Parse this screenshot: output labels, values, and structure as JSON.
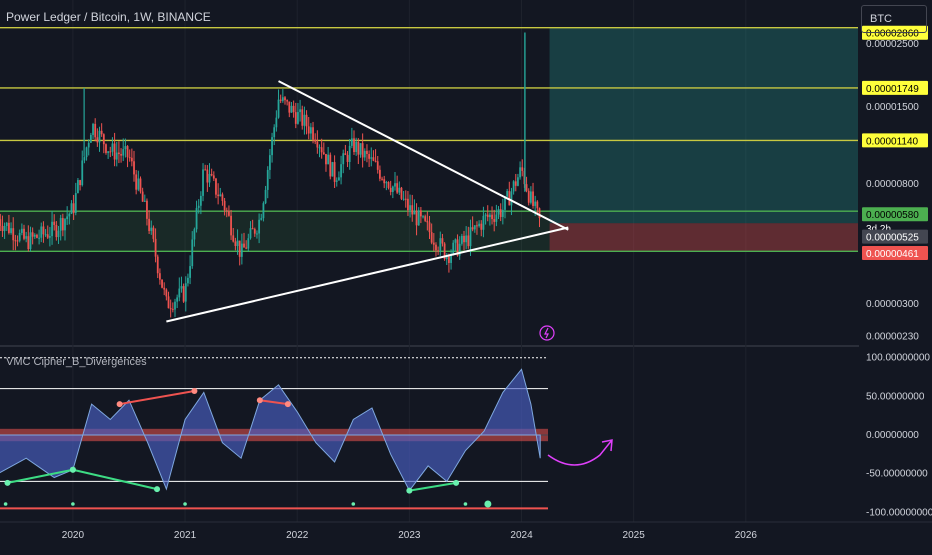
{
  "header": {
    "symbol": "Power Ledger / Bitcoin, 1W, BINANCE"
  },
  "currency_button": "BTC",
  "indicator": {
    "title": "VMC Cipher_B_Divergences"
  },
  "countdown": "3d 2h",
  "colors": {
    "background": "#131722",
    "bull": "#26a69a",
    "bear": "#ef5350",
    "yellow_level": "#c8c841",
    "green_level": "#4caf50",
    "wave": "#4a5fc4",
    "magenta": "#e040fb"
  },
  "chart_data": [
    {
      "type": "candlestick",
      "title": "Power Ledger / Bitcoin, 1W, BINANCE",
      "y_scale": "log",
      "ylim": [
        2.2e-06,
        2.8e-06
      ],
      "x_tick_labels": [
        "2020",
        "2021",
        "2022",
        "2023",
        "2024",
        "2025",
        "2026"
      ],
      "y_tick_labels": [
        "0.00002500",
        "0.00001500",
        "0.00000800",
        "0.00000300",
        "0.00000230"
      ],
      "horizontal_levels": [
        {
          "value_label": "0.00002860",
          "color": "yellow"
        },
        {
          "value_label": "0.00001749",
          "color": "yellow"
        },
        {
          "value_label": "0.00001140",
          "color": "yellow"
        },
        {
          "value_label": "0.00000580",
          "color": "green"
        },
        {
          "value_label": "0.00000461",
          "color": "green"
        }
      ],
      "price_labels": [
        {
          "text": "0.00001749",
          "kind": "level"
        },
        {
          "text": "0.00001140",
          "kind": "level"
        },
        {
          "text": "0.00000580",
          "kind": "current"
        },
        {
          "text": "0.00000525",
          "kind": "bid"
        },
        {
          "text": "0.00000461",
          "kind": "low"
        }
      ],
      "trendlines": [
        {
          "name": "descending resistance",
          "from": [
            "2021-11",
            1.85e-05
          ],
          "to": [
            "2024-06",
            5.5e-06
          ]
        },
        {
          "name": "ascending support",
          "from": [
            "2020-11",
            2.6e-06
          ],
          "to": [
            "2024-06",
            5.6e-06
          ]
        }
      ],
      "weekly_close_path": [
        [
          "2019-05",
          6e-06
        ],
        [
          "2019-08",
          5e-06
        ],
        [
          "2019-11",
          5.5e-06
        ],
        [
          "2020-01",
          6.5e-06
        ],
        [
          "2020-03",
          1.3e-05
        ],
        [
          "2020-05",
          1.05e-05
        ],
        [
          "2020-07",
          1e-05
        ],
        [
          "2020-09",
          6e-06
        ],
        [
          "2020-11",
          3e-06
        ],
        [
          "2021-01",
          3.3e-06
        ],
        [
          "2021-03",
          9e-06
        ],
        [
          "2021-05",
          7e-06
        ],
        [
          "2021-07",
          4.5e-06
        ],
        [
          "2021-09",
          6e-06
        ],
        [
          "2021-11",
          1.6e-05
        ],
        [
          "2022-01",
          1.4e-05
        ],
        [
          "2022-03",
          1.2e-05
        ],
        [
          "2022-05",
          8.5e-06
        ],
        [
          "2022-07",
          1.1e-05
        ],
        [
          "2022-09",
          9.5e-06
        ],
        [
          "2022-11",
          8e-06
        ],
        [
          "2023-01",
          6.5e-06
        ],
        [
          "2023-03",
          5.5e-06
        ],
        [
          "2023-05",
          4.5e-06
        ],
        [
          "2023-07",
          5e-06
        ],
        [
          "2023-09",
          6e-06
        ],
        [
          "2023-11",
          6.5e-06
        ],
        [
          "2024-01",
          9e-06
        ],
        [
          "2024-02",
          7e-06
        ],
        [
          "2024-03",
          5.8e-06
        ]
      ],
      "projection": {
        "from": "2024-04",
        "to": "2026-12",
        "target": 2.86e-05,
        "stop": 4.6e-06
      }
    },
    {
      "type": "line",
      "title": "VMC Cipher_B_Divergences",
      "ylim": [
        -110,
        110
      ],
      "y_tick_labels": [
        "100.00000000",
        "50.00000000",
        "0.00000000",
        "-50.00000000",
        "-100.00000000"
      ],
      "reference_levels": [
        100,
        60,
        0,
        -60,
        -95
      ],
      "divergence_lines": [
        {
          "type": "bearish",
          "from": [
            "2020-06",
            40
          ],
          "to": [
            "2021-02",
            57
          ]
        },
        {
          "type": "bearish",
          "from": [
            "2021-09",
            45
          ],
          "to": [
            "2021-12",
            40
          ]
        },
        {
          "type": "bullish",
          "from": [
            "2019-06",
            -62
          ],
          "to": [
            "2020-01",
            -45
          ]
        },
        {
          "type": "bullish",
          "from": [
            "2020-01",
            -45
          ],
          "to": [
            "2020-10",
            -70
          ]
        },
        {
          "type": "bullish",
          "from": [
            "2023-01",
            -72
          ],
          "to": [
            "2023-06",
            -62
          ]
        }
      ],
      "wave_path": [
        [
          "2019-05",
          -50
        ],
        [
          "2019-08",
          -30
        ],
        [
          "2019-11",
          -55
        ],
        [
          "2020-01",
          -45
        ],
        [
          "2020-03",
          40
        ],
        [
          "2020-05",
          20
        ],
        [
          "2020-07",
          45
        ],
        [
          "2020-09",
          -10
        ],
        [
          "2020-11",
          -70
        ],
        [
          "2021-01",
          20
        ],
        [
          "2021-03",
          55
        ],
        [
          "2021-05",
          -10
        ],
        [
          "2021-07",
          -30
        ],
        [
          "2021-09",
          45
        ],
        [
          "2021-11",
          65
        ],
        [
          "2022-01",
          30
        ],
        [
          "2022-03",
          -10
        ],
        [
          "2022-05",
          -35
        ],
        [
          "2022-07",
          20
        ],
        [
          "2022-09",
          35
        ],
        [
          "2022-11",
          -25
        ],
        [
          "2023-01",
          -72
        ],
        [
          "2023-03",
          -40
        ],
        [
          "2023-05",
          -60
        ],
        [
          "2023-07",
          -20
        ],
        [
          "2023-09",
          5
        ],
        [
          "2023-11",
          55
        ],
        [
          "2024-01",
          85
        ],
        [
          "2024-02",
          40
        ],
        [
          "2024-03",
          -30
        ]
      ]
    }
  ]
}
